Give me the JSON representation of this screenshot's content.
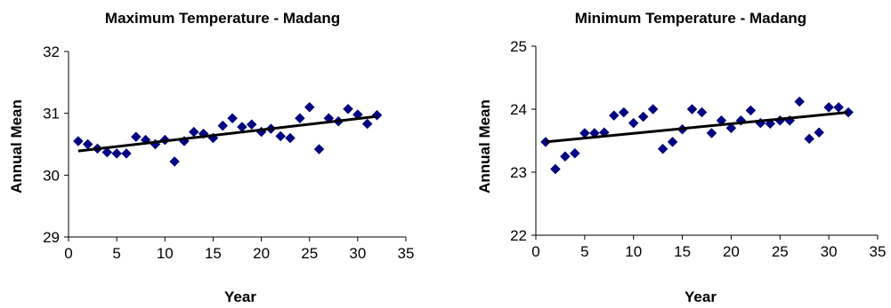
{
  "chart_data": [
    {
      "type": "scatter",
      "title": "Maximum Temperature - Madang",
      "xlabel": "Year",
      "ylabel": "Annual Mean",
      "xlim": [
        0,
        35
      ],
      "ylim": [
        29,
        32
      ],
      "xticks": [
        0,
        5,
        10,
        15,
        20,
        25,
        30,
        35
      ],
      "yticks": [
        29,
        30,
        31,
        32
      ],
      "grid": false,
      "legend": "none",
      "marker_color": "#000080",
      "trendline": {
        "type": "linear",
        "x": [
          1,
          32
        ],
        "y": [
          30.39,
          30.95
        ],
        "color": "#000000"
      },
      "series": [
        {
          "x": [
            1,
            2,
            3,
            4,
            5,
            6,
            7,
            8,
            9,
            10,
            11,
            12,
            13,
            14,
            15,
            16,
            17,
            18,
            19,
            20,
            21,
            22,
            23,
            24,
            25,
            26,
            27,
            28,
            29,
            30,
            31,
            32
          ],
          "y": [
            30.55,
            30.5,
            30.43,
            30.37,
            30.35,
            30.35,
            30.62,
            30.57,
            30.5,
            30.57,
            30.22,
            30.55,
            30.7,
            30.67,
            30.6,
            30.8,
            30.92,
            30.78,
            30.82,
            30.7,
            30.75,
            30.63,
            30.6,
            30.92,
            31.1,
            30.42,
            30.92,
            30.87,
            31.07,
            30.98,
            30.83,
            30.97
          ]
        }
      ]
    },
    {
      "type": "scatter",
      "title": "Minimum Temperature - Madang",
      "xlabel": "Year",
      "ylabel": "Annual Mean",
      "xlim": [
        0,
        35
      ],
      "ylim": [
        22,
        25
      ],
      "xticks": [
        0,
        5,
        10,
        15,
        20,
        25,
        30,
        35
      ],
      "yticks": [
        22,
        23,
        24,
        25
      ],
      "grid": false,
      "legend": "none",
      "marker_color": "#000080",
      "trendline": {
        "type": "linear",
        "x": [
          1,
          32
        ],
        "y": [
          23.48,
          23.95
        ],
        "color": "#000000"
      },
      "series": [
        {
          "x": [
            1,
            2,
            3,
            4,
            5,
            6,
            7,
            8,
            9,
            10,
            11,
            12,
            13,
            14,
            15,
            16,
            17,
            18,
            19,
            20,
            21,
            22,
            23,
            24,
            25,
            26,
            27,
            28,
            29,
            30,
            31,
            32
          ],
          "y": [
            23.48,
            23.05,
            23.25,
            23.3,
            23.62,
            23.62,
            23.63,
            23.9,
            23.95,
            23.78,
            23.88,
            24.0,
            23.37,
            23.48,
            23.68,
            24.0,
            23.95,
            23.62,
            23.82,
            23.7,
            23.82,
            23.98,
            23.78,
            23.77,
            23.82,
            23.82,
            24.12,
            23.53,
            23.63,
            24.03,
            24.03,
            23.95
          ]
        }
      ]
    }
  ]
}
